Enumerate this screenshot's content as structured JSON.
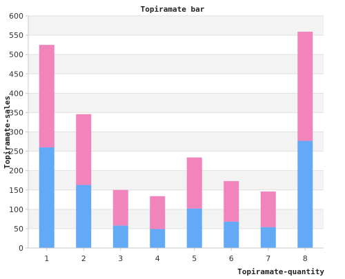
{
  "chart_data": {
    "type": "bar",
    "stacked": true,
    "title": "Topiramate bar",
    "xlabel": "Topiramate-quantity",
    "ylabel": "Topiramate-sales",
    "categories": [
      "1",
      "2",
      "3",
      "4",
      "5",
      "6",
      "7",
      "8"
    ],
    "ylim": [
      0,
      600
    ],
    "yticks": [
      0,
      50,
      100,
      150,
      200,
      250,
      300,
      350,
      400,
      450,
      500,
      550,
      600
    ],
    "series": [
      {
        "values": [
          260,
          163,
          58,
          49,
          102,
          68,
          54,
          277
        ],
        "color": "#62aaf6"
      },
      {
        "values": [
          265,
          183,
          92,
          85,
          132,
          105,
          92,
          282
        ],
        "color": "#f184bb"
      }
    ],
    "grid": true,
    "background_bands": [
      "#f3f3f3",
      "#ffffff"
    ]
  }
}
